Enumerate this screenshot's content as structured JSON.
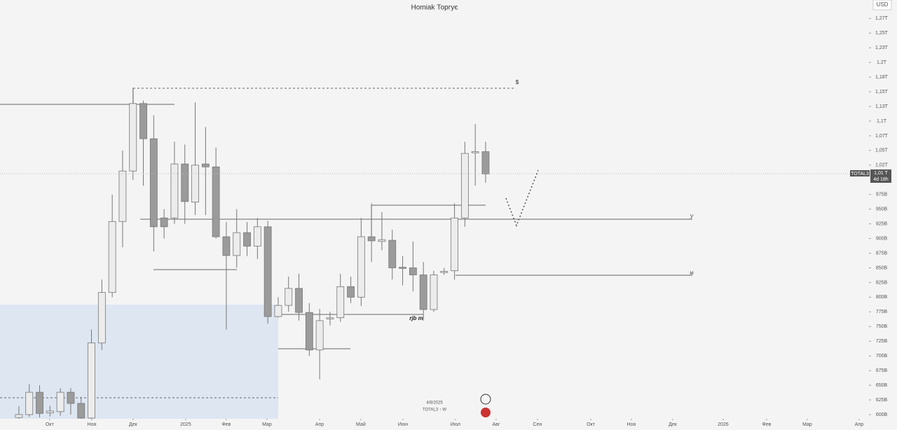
{
  "chart_data": {
    "type": "candlestick",
    "title": "Homiak Торгує",
    "currency": "USD",
    "symbol": "TOTAL3",
    "price_label": "1,01 T",
    "countdown": "4d 18h",
    "footer_date": "4/8/2025",
    "footer_symbol": "TOTAL3 ↑ W",
    "annotations": [
      "$",
      "У",
      "м",
      "rjb m"
    ],
    "up_color": "#ececec",
    "down_color": "#9b9b9b",
    "x": [
      0,
      1,
      2,
      3,
      4,
      5,
      6,
      7,
      8,
      9,
      10,
      11,
      12,
      13,
      14,
      15,
      16,
      17,
      18,
      19,
      20,
      21,
      22,
      23,
      24,
      25,
      26,
      27,
      28,
      29,
      30,
      31,
      32,
      33,
      34,
      35,
      36,
      37,
      38,
      39,
      40,
      41,
      42,
      43,
      44,
      45
    ],
    "open": [
      595,
      600,
      638,
      603,
      605,
      638,
      619,
      594,
      722,
      808,
      929,
      1015,
      1130,
      1070,
      935,
      935,
      1027,
      962,
      1027,
      1022,
      903,
      871,
      910,
      887,
      920,
      767,
      786,
      815,
      774,
      710,
      763,
      765,
      818,
      800,
      903,
      895,
      897,
      851,
      850,
      838,
      779,
      842,
      845,
      935,
      1046,
      1048
    ],
    "high": [
      614,
      652,
      650,
      615,
      645,
      645,
      630,
      745,
      830,
      975,
      1050,
      1157,
      1135,
      1110,
      950,
      1065,
      1060,
      1132,
      1090,
      1055,
      928,
      950,
      928,
      935,
      930,
      800,
      835,
      840,
      790,
      780,
      775,
      840,
      835,
      935,
      960,
      945,
      915,
      870,
      895,
      860,
      845,
      850,
      960,
      1065,
      1095,
      1065
    ],
    "low": [
      593,
      596,
      595,
      597,
      598,
      600,
      593,
      593,
      710,
      800,
      885,
      1000,
      990,
      878,
      900,
      925,
      925,
      940,
      940,
      900,
      745,
      850,
      870,
      865,
      755,
      765,
      775,
      760,
      700,
      660,
      752,
      758,
      790,
      785,
      860,
      880,
      830,
      820,
      810,
      760,
      775,
      838,
      830,
      920,
      990,
      995
    ],
    "close": [
      600,
      638,
      602,
      606,
      638,
      619,
      594,
      722,
      808,
      929,
      1015,
      1130,
      1070,
      920,
      920,
      1027,
      963,
      1025,
      1022,
      903,
      871,
      910,
      887,
      920,
      767,
      786,
      815,
      774,
      710,
      760,
      765,
      818,
      800,
      903,
      896,
      898,
      850,
      849,
      838,
      779,
      838,
      844,
      935,
      1045,
      1048,
      1010
    ],
    "xlim": [
      -1.82,
      81.96
    ],
    "ylim": [
      592.8,
      1306.4
    ],
    "xticks": [
      {
        "value": 2.97,
        "label": "Окт"
      },
      {
        "value": 7.03,
        "label": "Ноя"
      },
      {
        "value": 11.01,
        "label": "Дек"
      },
      {
        "value": 16.08,
        "label": "2025"
      },
      {
        "value": 20.0,
        "label": "Фев"
      },
      {
        "value": 23.92,
        "label": "Мар"
      },
      {
        "value": 28.99,
        "label": "Апр"
      },
      {
        "value": 32.97,
        "label": "Май"
      },
      {
        "value": 37.03,
        "label": "Июн"
      },
      {
        "value": 42.09,
        "label": "Июл"
      },
      {
        "value": 46.01,
        "label": "Авг"
      },
      {
        "value": 50.0,
        "label": "Сен"
      },
      {
        "value": 55.14,
        "label": "Окт"
      },
      {
        "value": 59.05,
        "label": "Ноя"
      },
      {
        "value": 63.04,
        "label": "Дек"
      },
      {
        "value": 67.9,
        "label": "2026"
      },
      {
        "value": 72.09,
        "label": "Фев"
      },
      {
        "value": 76.01,
        "label": "Мар"
      },
      {
        "value": 81.01,
        "label": "Апр"
      }
    ],
    "yticks": [
      {
        "value": 600,
        "label": "600B"
      },
      {
        "value": 625,
        "label": "625B"
      },
      {
        "value": 650,
        "label": "650B"
      },
      {
        "value": 675,
        "label": "675B"
      },
      {
        "value": 700,
        "label": "700B"
      },
      {
        "value": 725,
        "label": "725B"
      },
      {
        "value": 750,
        "label": "750B"
      },
      {
        "value": 775,
        "label": "775B"
      },
      {
        "value": 800,
        "label": "800B"
      },
      {
        "value": 825,
        "label": "825B"
      },
      {
        "value": 850,
        "label": "850B"
      },
      {
        "value": 875,
        "label": "875B"
      },
      {
        "value": 900,
        "label": "900B"
      },
      {
        "value": 925,
        "label": "925B"
      },
      {
        "value": 950,
        "label": "950B"
      },
      {
        "value": 975,
        "label": "975B"
      },
      {
        "value": 1025,
        "label": "1,02T"
      },
      {
        "value": 1050,
        "label": "1,05T"
      },
      {
        "value": 1075,
        "label": "1,07T"
      },
      {
        "value": 1100,
        "label": "1,1T"
      },
      {
        "value": 1125,
        "label": "1,13T"
      },
      {
        "value": 1150,
        "label": "1,15T"
      },
      {
        "value": 1175,
        "label": "1,18T"
      },
      {
        "value": 1200,
        "label": "1,2T"
      },
      {
        "value": 1225,
        "label": "1,23T"
      },
      {
        "value": 1250,
        "label": "1,25T"
      },
      {
        "value": 1275,
        "label": "1,27T"
      }
    ]
  }
}
